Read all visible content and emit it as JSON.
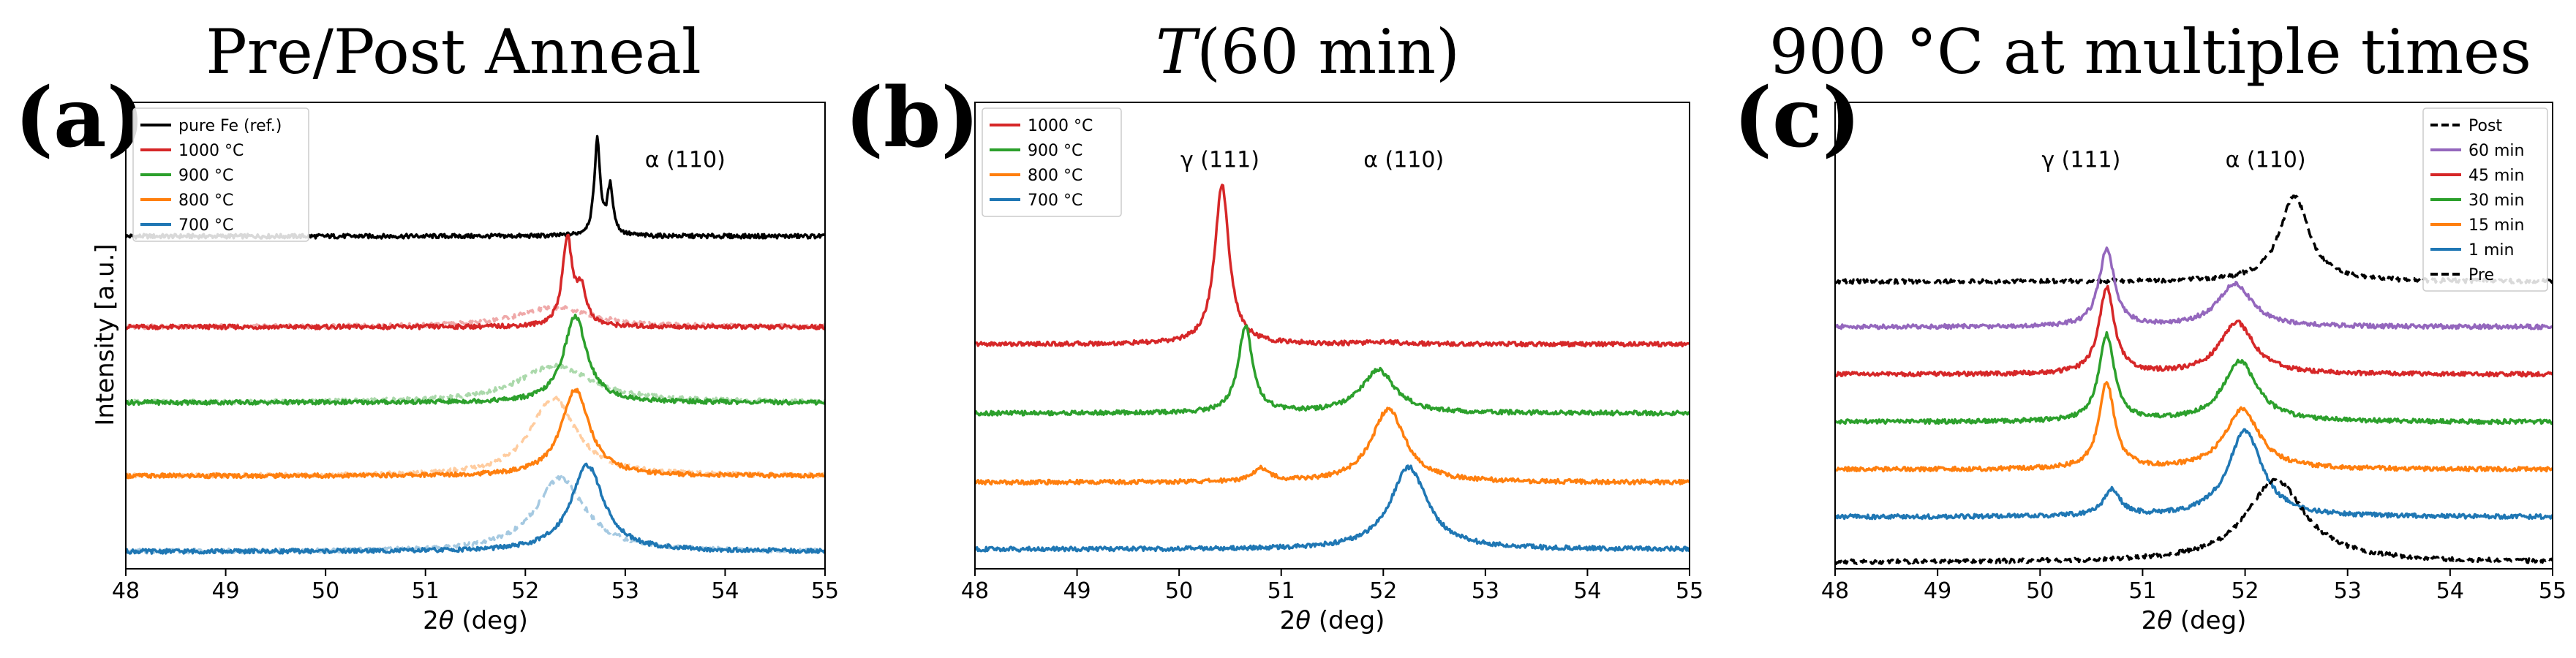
{
  "figure": {
    "panels": [
      {
        "id": "a",
        "label": "(a)",
        "title": "Pre/Post Anneal"
      },
      {
        "id": "b",
        "label": "(b)",
        "title_italic": "T",
        "title_rest": "(60 min)"
      },
      {
        "id": "c",
        "label": "(c)",
        "title": "900 °C at multiple times"
      }
    ],
    "ylabel": "Intensity [a.u.]"
  },
  "colors": {
    "black": "#000000",
    "red": "#d62728",
    "green": "#2ca02c",
    "orange": "#ff7f0e",
    "blue": "#1f77b4",
    "purple": "#9467bd"
  },
  "chart_data": [
    {
      "type": "line",
      "panel": "a",
      "title": "Pre/Post Anneal",
      "xlabel": "2θ (deg)",
      "ylabel": "Intensity [a.u.]",
      "xlim": [
        48,
        55
      ],
      "ylim": [
        0,
        1.08
      ],
      "xticks": [
        "48",
        "49",
        "50",
        "51",
        "52",
        "53",
        "54",
        "55"
      ],
      "annotations": [
        {
          "text": "α (110)",
          "x": 53.6,
          "y": 0.93
        }
      ],
      "legend": [
        "pure Fe (ref.)",
        "1000 °C",
        "900 °C",
        "800 °C",
        "700 °C"
      ],
      "series": [
        {
          "name": "pure Fe (ref.)",
          "color": "black",
          "dashed": false,
          "alpha": 1,
          "baseline": 0.77,
          "peaks": [
            {
              "c": 52.72,
              "h": 0.22,
              "w": 0.035
            },
            {
              "c": 52.85,
              "h": 0.11,
              "w": 0.035
            }
          ]
        },
        {
          "name": "1000 °C",
          "color": "red",
          "dashed": false,
          "alpha": 1,
          "baseline": 0.56,
          "peaks": [
            {
              "c": 52.42,
              "h": 0.2,
              "w": 0.06
            },
            {
              "c": 52.56,
              "h": 0.08,
              "w": 0.06
            }
          ]
        },
        {
          "name": "1000 °C (pre)",
          "color": "red",
          "dashed": true,
          "alpha": 0.4,
          "baseline": 0.56,
          "peaks": [
            {
              "c": 52.3,
              "h": 0.045,
              "w": 0.45
            }
          ]
        },
        {
          "name": "900 °C",
          "color": "green",
          "dashed": false,
          "alpha": 1,
          "baseline": 0.385,
          "peaks": [
            {
              "c": 52.5,
              "h": 0.2,
              "w": 0.14
            }
          ]
        },
        {
          "name": "900 °C (pre)",
          "color": "green",
          "dashed": true,
          "alpha": 0.4,
          "baseline": 0.385,
          "peaks": [
            {
              "c": 52.3,
              "h": 0.085,
              "w": 0.45
            }
          ]
        },
        {
          "name": "800 °C",
          "color": "orange",
          "dashed": false,
          "alpha": 1,
          "baseline": 0.215,
          "peaks": [
            {
              "c": 52.5,
              "h": 0.2,
              "w": 0.17
            }
          ]
        },
        {
          "name": "800 °C (pre)",
          "color": "orange",
          "dashed": true,
          "alpha": 0.4,
          "baseline": 0.215,
          "peaks": [
            {
              "c": 52.28,
              "h": 0.18,
              "w": 0.28
            }
          ]
        },
        {
          "name": "700 °C",
          "color": "blue",
          "dashed": false,
          "alpha": 1,
          "baseline": 0.04,
          "peaks": [
            {
              "c": 52.62,
              "h": 0.2,
              "w": 0.2
            }
          ]
        },
        {
          "name": "700 °C (pre)",
          "color": "blue",
          "dashed": true,
          "alpha": 0.4,
          "baseline": 0.04,
          "peaks": [
            {
              "c": 52.35,
              "h": 0.17,
              "w": 0.3
            }
          ]
        }
      ]
    },
    {
      "type": "line",
      "panel": "b",
      "title": "T(60 min)",
      "xlabel": "2θ (deg)",
      "xlim": [
        48,
        55
      ],
      "ylim": [
        0,
        1.08
      ],
      "xticks": [
        "48",
        "49",
        "50",
        "51",
        "52",
        "53",
        "54",
        "55"
      ],
      "annotations": [
        {
          "text": "γ (111)",
          "x": 50.4,
          "y": 0.93
        },
        {
          "text": "α (110)",
          "x": 52.2,
          "y": 0.93
        }
      ],
      "legend": [
        "1000 °C",
        "900 °C",
        "800 °C",
        "700 °C"
      ],
      "series": [
        {
          "name": "1000 °C",
          "color": "red",
          "dashed": false,
          "alpha": 1,
          "baseline": 0.52,
          "peaks": [
            {
              "c": 50.42,
              "h": 0.37,
              "w": 0.085
            },
            {
              "c": 52.0,
              "h": 0.005,
              "w": 0.2
            }
          ]
        },
        {
          "name": "900 °C",
          "color": "green",
          "dashed": false,
          "alpha": 1,
          "baseline": 0.36,
          "peaks": [
            {
              "c": 50.65,
              "h": 0.2,
              "w": 0.085
            },
            {
              "c": 51.95,
              "h": 0.1,
              "w": 0.2
            }
          ]
        },
        {
          "name": "800 °C",
          "color": "orange",
          "dashed": false,
          "alpha": 1,
          "baseline": 0.2,
          "peaks": [
            {
              "c": 50.8,
              "h": 0.03,
              "w": 0.1
            },
            {
              "c": 52.05,
              "h": 0.17,
              "w": 0.2
            }
          ]
        },
        {
          "name": "700 °C",
          "color": "blue",
          "dashed": false,
          "alpha": 1,
          "baseline": 0.045,
          "peaks": [
            {
              "c": 52.25,
              "h": 0.19,
              "w": 0.22
            }
          ]
        }
      ]
    },
    {
      "type": "line",
      "panel": "c",
      "title": "900 °C at multiple times",
      "xlabel": "2θ (deg)",
      "xlim": [
        48,
        55
      ],
      "ylim": [
        0,
        1.08
      ],
      "xticks": [
        "48",
        "49",
        "50",
        "51",
        "52",
        "53",
        "54",
        "55"
      ],
      "annotations": [
        {
          "text": "γ (111)",
          "x": 50.4,
          "y": 0.93
        },
        {
          "text": "α (110)",
          "x": 52.2,
          "y": 0.93
        }
      ],
      "legend": [
        "Post",
        "60 min",
        "45 min",
        "30 min",
        "15 min",
        "1 min",
        "Pre"
      ],
      "series": [
        {
          "name": "Post",
          "color": "black",
          "dashed": true,
          "alpha": 1,
          "baseline": 0.665,
          "peaks": [
            {
              "c": 52.48,
              "h": 0.2,
              "w": 0.17
            }
          ]
        },
        {
          "name": "60 min",
          "color": "purple",
          "dashed": false,
          "alpha": 1,
          "baseline": 0.56,
          "peaks": [
            {
              "c": 50.65,
              "h": 0.18,
              "w": 0.09
            },
            {
              "c": 51.9,
              "h": 0.1,
              "w": 0.2
            }
          ]
        },
        {
          "name": "45 min",
          "color": "red",
          "dashed": false,
          "alpha": 1,
          "baseline": 0.45,
          "peaks": [
            {
              "c": 50.65,
              "h": 0.2,
              "w": 0.09
            },
            {
              "c": 51.92,
              "h": 0.12,
              "w": 0.2
            }
          ]
        },
        {
          "name": "30 min",
          "color": "green",
          "dashed": false,
          "alpha": 1,
          "baseline": 0.34,
          "peaks": [
            {
              "c": 50.65,
              "h": 0.2,
              "w": 0.09
            },
            {
              "c": 51.95,
              "h": 0.14,
              "w": 0.2
            }
          ]
        },
        {
          "name": "15 min",
          "color": "orange",
          "dashed": false,
          "alpha": 1,
          "baseline": 0.23,
          "peaks": [
            {
              "c": 50.65,
              "h": 0.2,
              "w": 0.09
            },
            {
              "c": 51.97,
              "h": 0.14,
              "w": 0.2
            }
          ]
        },
        {
          "name": "1 min",
          "color": "blue",
          "dashed": false,
          "alpha": 1,
          "baseline": 0.12,
          "peaks": [
            {
              "c": 50.7,
              "h": 0.06,
              "w": 0.1
            },
            {
              "c": 52.0,
              "h": 0.2,
              "w": 0.2
            }
          ]
        },
        {
          "name": "Pre",
          "color": "black",
          "dashed": true,
          "alpha": 1,
          "baseline": 0.015,
          "peaks": [
            {
              "c": 52.3,
              "h": 0.19,
              "w": 0.35
            }
          ]
        }
      ]
    }
  ]
}
